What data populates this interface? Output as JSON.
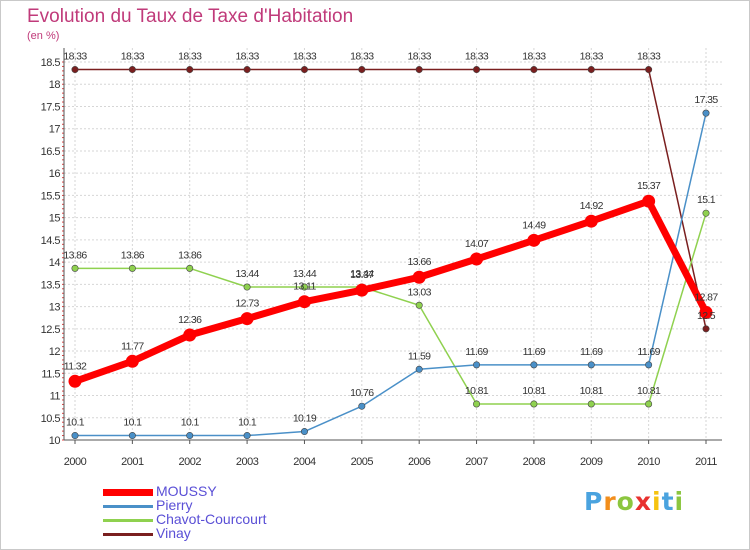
{
  "title": "Evolution du Taux de Taxe d'Habitation",
  "unit_label": "(en %)",
  "brand": {
    "letters": [
      "P",
      "r",
      "o",
      "x",
      "i",
      "t",
      "i"
    ],
    "colors": [
      "#4aa3df",
      "#f28e1c",
      "#8cc63f",
      "#e8312f",
      "#f6c30f",
      "#4aa3df",
      "#8cc63f"
    ]
  },
  "chart_data": {
    "type": "line",
    "title": "Evolution du Taux de Taxe d'Habitation",
    "ylabel": "(en %)",
    "xlabel": "",
    "x": [
      "2000",
      "2001",
      "2002",
      "2003",
      "2004",
      "2005",
      "2006",
      "2007",
      "2008",
      "2009",
      "2010",
      "2011"
    ],
    "ylim": [
      10,
      18.5
    ],
    "yticks": [
      "10",
      "10.5",
      "11",
      "11.5",
      "12",
      "12.5",
      "13",
      "13.5",
      "14",
      "14.5",
      "15",
      "15.5",
      "16",
      "16.5",
      "17",
      "17.5",
      "18",
      "18.5"
    ],
    "grid": true,
    "legend_position": "bottom-left",
    "series": [
      {
        "name": "MOUSSY",
        "color": "#ff0000",
        "emphasis": true,
        "values": [
          11.32,
          11.77,
          12.36,
          12.73,
          13.11,
          13.37,
          13.66,
          14.07,
          14.49,
          14.92,
          15.37,
          12.87
        ],
        "labels": [
          "11.32",
          "11.77",
          "12.36",
          "12.73",
          "13.11",
          "13.37",
          "13.66",
          "14.07",
          "14.49",
          "14.92",
          "15.37",
          "12.87"
        ]
      },
      {
        "name": "Pierry",
        "color": "#4a90c8",
        "values": [
          10.1,
          10.1,
          10.1,
          10.1,
          10.19,
          10.76,
          11.59,
          11.69,
          11.69,
          11.69,
          11.69,
          17.35
        ],
        "labels": [
          "10.1",
          "10.1",
          "10.1",
          "10.1",
          "10.19",
          "10.76",
          "11.59",
          "11.69",
          "11.69",
          "11.69",
          "11.69",
          "17.35"
        ]
      },
      {
        "name": "Chavot-Courcourt",
        "color": "#8fd14f",
        "values": [
          13.86,
          13.86,
          13.86,
          13.44,
          13.44,
          13.44,
          13.03,
          10.81,
          10.81,
          10.81,
          10.81,
          15.1
        ],
        "labels": [
          "13.86",
          "13.86",
          "13.86",
          "13.44",
          "13.44",
          "13.44",
          "13.03",
          "10.81",
          "10.81",
          "10.81",
          "10.81",
          "15.1"
        ]
      },
      {
        "name": "Vinay",
        "color": "#7a1f1f",
        "values": [
          18.33,
          18.33,
          18.33,
          18.33,
          18.33,
          18.33,
          18.33,
          18.33,
          18.33,
          18.33,
          18.33,
          12.5
        ],
        "labels": [
          "18.33",
          "18.33",
          "18.33",
          "18.33",
          "18.33",
          "18.33",
          "18.33",
          "18.33",
          "18.33",
          "18.33",
          "18.33",
          "12.5"
        ]
      }
    ]
  }
}
